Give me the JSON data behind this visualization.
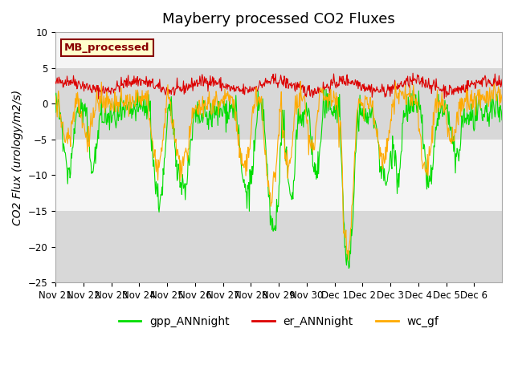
{
  "title": "Mayberry processed CO2 Fluxes",
  "ylabel": "CO2 Flux (urology/m2/s)",
  "ylim": [
    -25,
    10
  ],
  "yticks": [
    -25,
    -20,
    -15,
    -10,
    -5,
    0,
    5,
    10
  ],
  "date_labels": [
    "Nov 21",
    "Nov 22",
    "Nov 23",
    "Nov 24",
    "Nov 25",
    "Nov 26",
    "Nov 27",
    "Nov 28",
    "Nov 29",
    "Nov 30",
    "Dec 1",
    "Dec 2",
    "Dec 3",
    "Dec 4",
    "Dec 5",
    "Dec 6"
  ],
  "legend_entries": [
    "gpp_ANNnight",
    "er_ANNnight",
    "wc_gf"
  ],
  "legend_colors": [
    "#00dd00",
    "#dd0000",
    "#ffaa00"
  ],
  "inset_label": "MB_processed",
  "inset_bg": "#ffffcc",
  "inset_border": "#880000",
  "line_colors": {
    "gpp": "#00dd00",
    "er": "#dd0000",
    "wc": "#ffaa00"
  },
  "gray_band_color": "#d8d8d8",
  "bg_color": "#f5f5f5",
  "title_fontsize": 13,
  "axis_fontsize": 10,
  "tick_fontsize": 8.5
}
